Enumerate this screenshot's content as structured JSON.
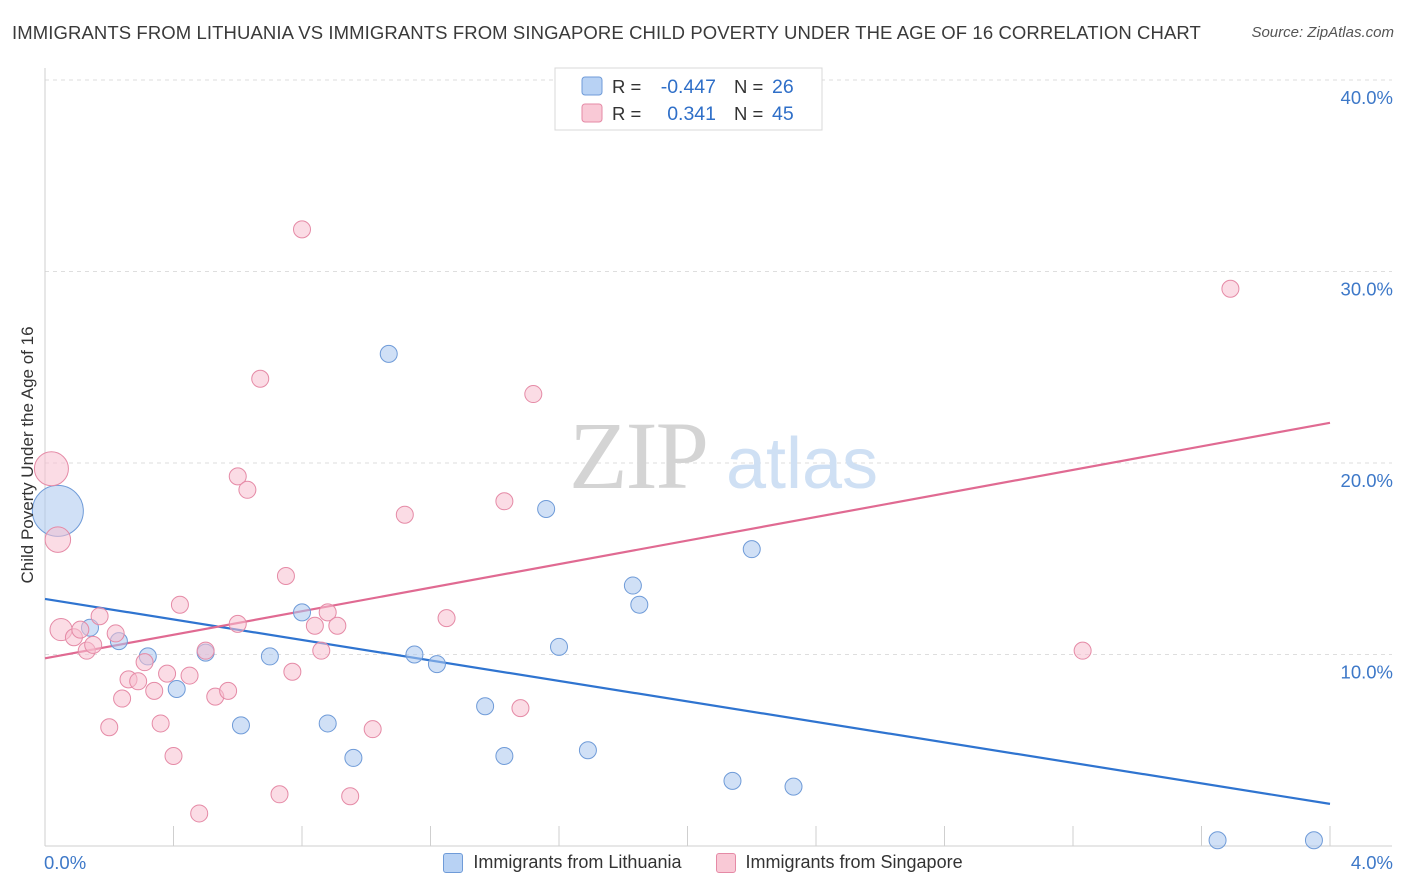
{
  "title": "IMMIGRANTS FROM LITHUANIA VS IMMIGRANTS FROM SINGAPORE CHILD POVERTY UNDER THE AGE OF 16 CORRELATION CHART",
  "source": "Source: ZipAtlas.com",
  "watermark": {
    "zip": "ZIP",
    "atlas": "atlas"
  },
  "chart_data": {
    "type": "scatter",
    "xlabel": "",
    "ylabel": "Child Poverty Under the Age of 16",
    "xlim": [
      0,
      4.0
    ],
    "ylim": [
      0,
      40.0
    ],
    "x_tick_labels": {
      "min": "0.0%",
      "max": "4.0%"
    },
    "y_ticks": [
      10,
      20,
      30,
      40
    ],
    "y_tick_labels": [
      "10.0%",
      "20.0%",
      "30.0%",
      "40.0%"
    ],
    "grid": true,
    "legend_placement": "top-center",
    "stats": [
      {
        "r_label": "R =",
        "r_value": "-0.447",
        "n_label": "N =",
        "n_value": "26"
      },
      {
        "r_label": "R =",
        "r_value": "0.341",
        "n_label": "N =",
        "n_value": "45"
      }
    ],
    "series": [
      {
        "name": "Immigrants from Lithuania",
        "color": "#a9c7ef",
        "stroke": "#6f9bd8",
        "line_color": "#2f74d0",
        "trend": {
          "x": [
            0,
            4.0
          ],
          "y": [
            12.9,
            2.2
          ]
        },
        "points": [
          [
            0.04,
            17.5,
            3
          ],
          [
            0.14,
            11.4,
            1
          ],
          [
            0.23,
            10.7,
            1
          ],
          [
            0.32,
            9.9,
            1
          ],
          [
            0.41,
            8.2,
            1
          ],
          [
            0.5,
            10.1,
            1
          ],
          [
            0.61,
            6.3,
            1
          ],
          [
            0.7,
            9.9,
            1
          ],
          [
            0.8,
            12.2,
            1
          ],
          [
            0.88,
            6.4,
            1
          ],
          [
            0.96,
            4.6,
            1
          ],
          [
            1.07,
            25.7,
            1
          ],
          [
            1.15,
            10.0,
            1
          ],
          [
            1.22,
            9.5,
            1
          ],
          [
            1.37,
            7.3,
            1
          ],
          [
            1.43,
            4.7,
            1
          ],
          [
            1.56,
            17.6,
            1
          ],
          [
            1.6,
            10.4,
            1
          ],
          [
            1.69,
            5.0,
            1
          ],
          [
            1.83,
            13.6,
            1
          ],
          [
            1.85,
            12.6,
            1
          ],
          [
            2.14,
            3.4,
            1
          ],
          [
            2.2,
            15.5,
            1
          ],
          [
            2.33,
            3.1,
            1
          ],
          [
            3.65,
            0.3,
            1
          ],
          [
            3.95,
            0.3,
            1
          ]
        ]
      },
      {
        "name": "Immigrants from Singapore",
        "color": "#f7bfcf",
        "stroke": "#e58aa6",
        "line_color": "#e06a92",
        "trend": {
          "x": [
            0,
            4.0
          ],
          "y": [
            9.8,
            22.1
          ]
        },
        "points": [
          [
            0.02,
            19.7,
            2
          ],
          [
            0.04,
            16.0,
            1.5
          ],
          [
            0.05,
            11.3,
            1.3
          ],
          [
            0.09,
            10.9,
            1
          ],
          [
            0.11,
            11.3,
            1
          ],
          [
            0.13,
            10.2,
            1
          ],
          [
            0.15,
            10.5,
            1
          ],
          [
            0.17,
            12.0,
            1
          ],
          [
            0.2,
            6.2,
            1
          ],
          [
            0.22,
            11.1,
            1
          ],
          [
            0.24,
            7.7,
            1
          ],
          [
            0.26,
            8.7,
            1
          ],
          [
            0.29,
            8.6,
            1
          ],
          [
            0.31,
            9.6,
            1
          ],
          [
            0.34,
            8.1,
            1
          ],
          [
            0.36,
            6.4,
            1
          ],
          [
            0.38,
            9.0,
            1
          ],
          [
            0.4,
            4.7,
            1
          ],
          [
            0.42,
            12.6,
            1
          ],
          [
            0.45,
            8.9,
            1
          ],
          [
            0.48,
            1.7,
            1
          ],
          [
            0.5,
            10.2,
            1
          ],
          [
            0.53,
            7.8,
            1
          ],
          [
            0.57,
            8.1,
            1
          ],
          [
            0.6,
            11.6,
            1
          ],
          [
            0.6,
            19.3,
            1
          ],
          [
            0.63,
            18.6,
            1
          ],
          [
            0.67,
            24.4,
            1
          ],
          [
            0.73,
            2.7,
            1
          ],
          [
            0.75,
            14.1,
            1
          ],
          [
            0.77,
            9.1,
            1
          ],
          [
            0.8,
            32.2,
            1
          ],
          [
            0.84,
            11.5,
            1
          ],
          [
            0.86,
            10.2,
            1
          ],
          [
            0.88,
            12.2,
            1
          ],
          [
            0.91,
            11.5,
            1
          ],
          [
            0.95,
            2.6,
            1
          ],
          [
            1.02,
            6.1,
            1
          ],
          [
            1.12,
            17.3,
            1
          ],
          [
            1.25,
            11.9,
            1
          ],
          [
            1.43,
            18.0,
            1
          ],
          [
            1.48,
            7.2,
            1
          ],
          [
            1.52,
            23.6,
            1
          ],
          [
            3.23,
            10.2,
            1
          ],
          [
            3.69,
            29.1,
            1
          ]
        ]
      }
    ]
  }
}
